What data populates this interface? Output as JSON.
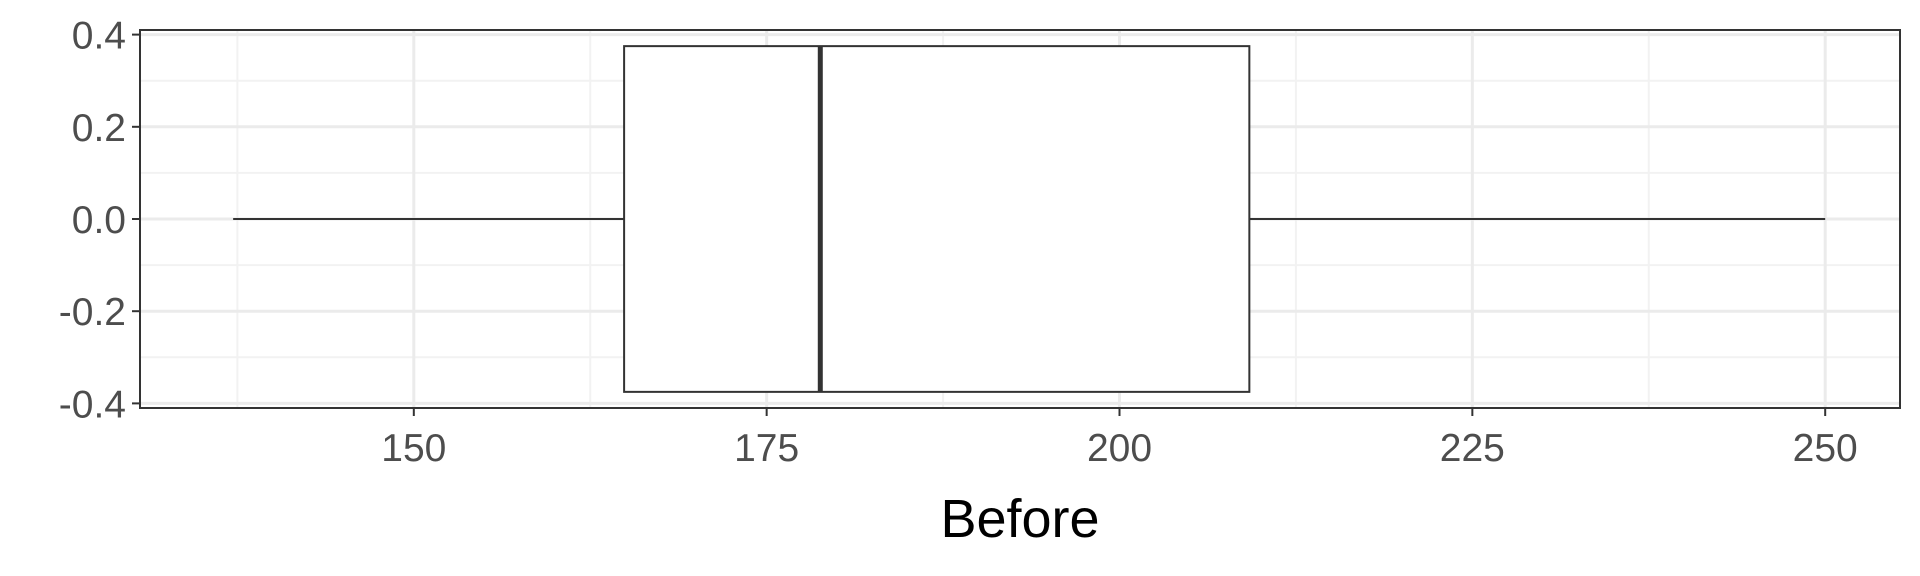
{
  "chart_data": {
    "type": "boxplot",
    "title": "",
    "xlabel": "Before",
    "ylabel": "",
    "xlim": [
      130.6,
      255.3
    ],
    "ylim": [
      -0.41,
      0.41
    ],
    "x_ticks": [
      150,
      175,
      200,
      225,
      250
    ],
    "x_tick_labels": [
      "150",
      "175",
      "200",
      "225",
      "250"
    ],
    "y_ticks": [
      0.4,
      0.2,
      0.0,
      -0.2,
      -0.4
    ],
    "y_tick_labels": [
      "0.4",
      "0.2",
      "0.0",
      "-0.2",
      "-0.4"
    ],
    "x_minor_ticks": [
      137.5,
      162.5,
      187.5,
      212.5,
      237.5
    ],
    "y_minor_ticks": [
      0.3,
      0.1,
      -0.1,
      -0.3
    ],
    "box": {
      "whisker_low": 137.2,
      "q1": 164.9,
      "median": 178.8,
      "q3": 209.2,
      "whisker_high": 250.0,
      "y_center": 0.0,
      "half_width": 0.375
    },
    "grid": true,
    "theme": "bw",
    "colors": {
      "panel_border": "#333333",
      "grid_major": "#ebebeb",
      "grid_minor": "#f2f2f2",
      "box_line": "#333333",
      "box_fill": "#ffffff",
      "tick_text": "#4d4d4d",
      "title_text": "#000000"
    }
  }
}
